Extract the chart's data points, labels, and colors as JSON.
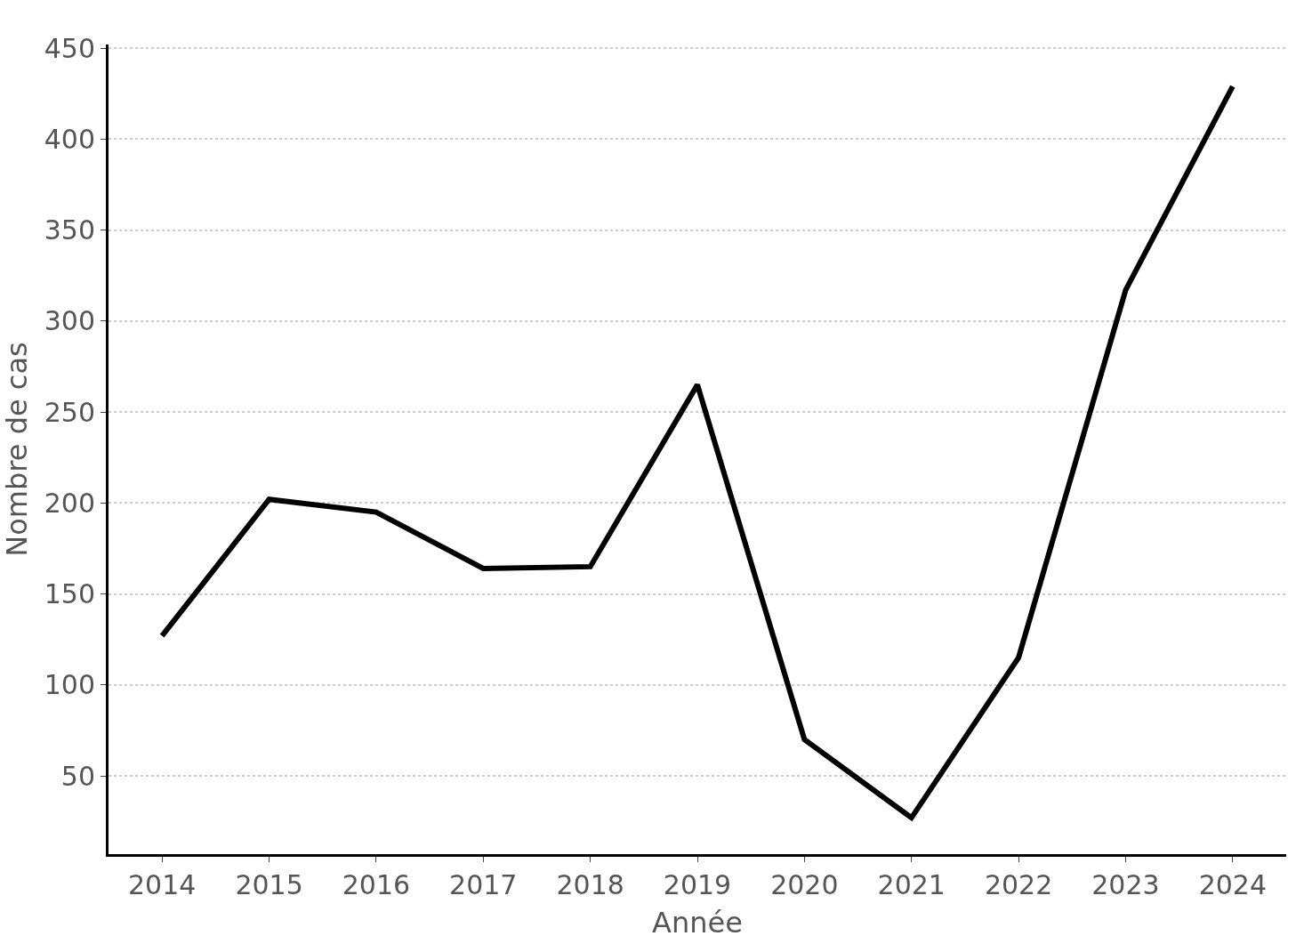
{
  "chart_data": {
    "type": "line",
    "xlabel": "Année",
    "ylabel": "Nombre de cas",
    "categories": [
      "2014",
      "2015",
      "2016",
      "2017",
      "2018",
      "2019",
      "2020",
      "2021",
      "2022",
      "2023",
      "2024"
    ],
    "series": [
      {
        "color": "#000000",
        "values": [
          127,
          202,
          195,
          164,
          165,
          265,
          70,
          27,
          115,
          317,
          429
        ]
      }
    ],
    "ylim": [
      7,
      452
    ],
    "yticks": [
      50,
      100,
      150,
      200,
      250,
      300,
      350,
      400,
      450
    ],
    "grid": "y",
    "marker": "none",
    "line_style": "solid"
  }
}
